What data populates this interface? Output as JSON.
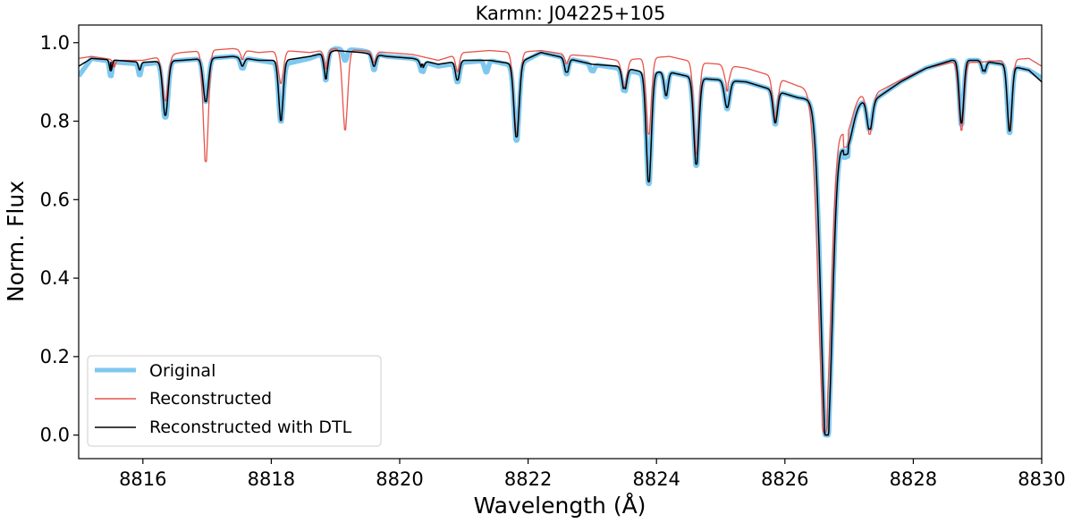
{
  "chart_data": {
    "type": "line",
    "title": "Karmn: J04225+105",
    "xlabel": "Wavelength (Å)",
    "ylabel": "Norm. Flux",
    "xlim": [
      8815,
      8830
    ],
    "ylim": [
      -0.06,
      1.045
    ],
    "xticks": [
      8816,
      8818,
      8820,
      8822,
      8824,
      8826,
      8828,
      8830
    ],
    "yticks": [
      0.0,
      0.2,
      0.4,
      0.6,
      0.8,
      1.0
    ],
    "grid": false,
    "legend_position": "lower-left",
    "series": [
      {
        "name": "Original",
        "color": "#7ec8f0",
        "baseline": [
          [
            8815.0,
            0.915
          ],
          [
            8815.2,
            0.96
          ],
          [
            8815.6,
            0.95
          ],
          [
            8816.0,
            0.945
          ],
          [
            8816.6,
            0.955
          ],
          [
            8817.0,
            0.96
          ],
          [
            8817.4,
            0.965
          ],
          [
            8817.8,
            0.955
          ],
          [
            8818.2,
            0.945
          ],
          [
            8818.6,
            0.96
          ],
          [
            8819.0,
            0.985
          ],
          [
            8819.4,
            0.98
          ],
          [
            8819.8,
            0.965
          ],
          [
            8820.2,
            0.96
          ],
          [
            8820.6,
            0.94
          ],
          [
            8821.0,
            0.95
          ],
          [
            8821.4,
            0.955
          ],
          [
            8821.8,
            0.94
          ],
          [
            8822.2,
            0.975
          ],
          [
            8822.6,
            0.96
          ],
          [
            8823.0,
            0.945
          ],
          [
            8823.4,
            0.935
          ],
          [
            8823.8,
            0.92
          ],
          [
            8824.2,
            0.925
          ],
          [
            8824.6,
            0.91
          ],
          [
            8825.0,
            0.905
          ],
          [
            8825.4,
            0.9
          ],
          [
            8825.8,
            0.88
          ],
          [
            8826.2,
            0.86
          ],
          [
            8826.6,
            0.85
          ],
          [
            8827.0,
            0.85
          ],
          [
            8827.4,
            0.855
          ],
          [
            8827.8,
            0.9
          ],
          [
            8828.2,
            0.935
          ],
          [
            8828.6,
            0.955
          ],
          [
            8829.0,
            0.955
          ],
          [
            8829.4,
            0.945
          ],
          [
            8829.8,
            0.93
          ],
          [
            8830.0,
            0.91
          ]
        ],
        "lines": [
          [
            8815.5,
            0.945,
            0.02,
            0.04
          ],
          [
            8815.95,
            0.92,
            0.02,
            0.03
          ],
          [
            8816.35,
            0.81,
            0.04,
            0.15
          ],
          [
            8816.98,
            0.85,
            0.04,
            0.11
          ],
          [
            8817.55,
            0.935,
            0.03,
            0.03
          ],
          [
            8818.15,
            0.8,
            0.035,
            0.15
          ],
          [
            8818.85,
            0.9,
            0.03,
            0.06
          ],
          [
            8819.15,
            0.955,
            0.03,
            0.03
          ],
          [
            8819.6,
            0.93,
            0.03,
            0.04
          ],
          [
            8820.35,
            0.94,
            0.03,
            0.03
          ],
          [
            8820.9,
            0.9,
            0.03,
            0.05
          ],
          [
            8821.35,
            0.925,
            0.03,
            0.03
          ],
          [
            8821.82,
            0.75,
            0.04,
            0.19
          ],
          [
            8822.6,
            0.92,
            0.03,
            0.04
          ],
          [
            8823.0,
            0.93,
            0.03,
            0.02
          ],
          [
            8823.5,
            0.88,
            0.035,
            0.06
          ],
          [
            8823.88,
            0.64,
            0.04,
            0.28
          ],
          [
            8824.15,
            0.86,
            0.03,
            0.06
          ],
          [
            8824.62,
            0.685,
            0.04,
            0.22
          ],
          [
            8825.1,
            0.83,
            0.04,
            0.07
          ],
          [
            8825.85,
            0.79,
            0.035,
            0.08
          ],
          [
            8826.65,
            0.0,
            0.09,
            0.88
          ],
          [
            8826.95,
            0.7,
            0.1,
            0.12
          ],
          [
            8827.32,
            0.78,
            0.04,
            0.08
          ],
          [
            8828.75,
            0.79,
            0.035,
            0.16
          ],
          [
            8829.1,
            0.925,
            0.03,
            0.03
          ],
          [
            8829.5,
            0.77,
            0.035,
            0.17
          ]
        ]
      },
      {
        "name": "Reconstructed",
        "color": "#e8534a",
        "baseline": [
          [
            8815.0,
            0.96
          ],
          [
            8815.2,
            0.965
          ],
          [
            8815.6,
            0.955
          ],
          [
            8816.0,
            0.955
          ],
          [
            8816.6,
            0.975
          ],
          [
            8817.0,
            0.98
          ],
          [
            8817.4,
            0.985
          ],
          [
            8817.8,
            0.975
          ],
          [
            8818.2,
            0.98
          ],
          [
            8818.6,
            0.975
          ],
          [
            8819.0,
            0.985
          ],
          [
            8819.4,
            0.98
          ],
          [
            8819.8,
            0.975
          ],
          [
            8820.2,
            0.97
          ],
          [
            8820.6,
            0.955
          ],
          [
            8821.0,
            0.975
          ],
          [
            8821.4,
            0.98
          ],
          [
            8821.8,
            0.975
          ],
          [
            8822.2,
            0.98
          ],
          [
            8822.6,
            0.97
          ],
          [
            8823.0,
            0.965
          ],
          [
            8823.4,
            0.955
          ],
          [
            8823.8,
            0.96
          ],
          [
            8824.2,
            0.965
          ],
          [
            8824.6,
            0.95
          ],
          [
            8825.0,
            0.945
          ],
          [
            8825.4,
            0.935
          ],
          [
            8825.8,
            0.915
          ],
          [
            8826.2,
            0.89
          ],
          [
            8826.6,
            0.875
          ],
          [
            8827.0,
            0.87
          ],
          [
            8827.4,
            0.87
          ],
          [
            8827.8,
            0.905
          ],
          [
            8828.2,
            0.935
          ],
          [
            8828.6,
            0.95
          ],
          [
            8829.0,
            0.95
          ],
          [
            8829.4,
            0.955
          ],
          [
            8829.8,
            0.96
          ],
          [
            8830.0,
            0.94
          ]
        ],
        "lines": [
          [
            8815.55,
            0.955,
            0.02,
            0.02
          ],
          [
            8816.35,
            0.85,
            0.045,
            0.11
          ],
          [
            8816.98,
            0.695,
            0.04,
            0.28
          ],
          [
            8817.55,
            0.955,
            0.03,
            0.02
          ],
          [
            8818.15,
            0.895,
            0.04,
            0.08
          ],
          [
            8818.85,
            0.93,
            0.03,
            0.04
          ],
          [
            8819.15,
            0.775,
            0.04,
            0.2
          ],
          [
            8819.6,
            0.95,
            0.03,
            0.03
          ],
          [
            8820.9,
            0.925,
            0.03,
            0.04
          ],
          [
            8821.82,
            0.765,
            0.045,
            0.2
          ],
          [
            8822.6,
            0.945,
            0.03,
            0.02
          ],
          [
            8823.5,
            0.89,
            0.04,
            0.07
          ],
          [
            8823.88,
            0.765,
            0.04,
            0.19
          ],
          [
            8824.62,
            0.715,
            0.04,
            0.23
          ],
          [
            8825.1,
            0.87,
            0.04,
            0.05
          ],
          [
            8825.85,
            0.795,
            0.04,
            0.1
          ],
          [
            8826.62,
            0.0,
            0.1,
            0.86
          ],
          [
            8826.95,
            0.72,
            0.1,
            0.1
          ],
          [
            8827.32,
            0.765,
            0.045,
            0.1
          ],
          [
            8828.75,
            0.775,
            0.04,
            0.17
          ],
          [
            8829.5,
            0.78,
            0.04,
            0.17
          ]
        ]
      },
      {
        "name": "Reconstructed with DTL",
        "color": "#000000",
        "baseline": [
          [
            8815.0,
            0.94
          ],
          [
            8815.2,
            0.96
          ],
          [
            8815.6,
            0.955
          ],
          [
            8816.0,
            0.95
          ],
          [
            8816.6,
            0.955
          ],
          [
            8817.0,
            0.96
          ],
          [
            8817.4,
            0.965
          ],
          [
            8817.8,
            0.955
          ],
          [
            8818.2,
            0.955
          ],
          [
            8818.6,
            0.965
          ],
          [
            8819.0,
            0.98
          ],
          [
            8819.4,
            0.975
          ],
          [
            8819.8,
            0.965
          ],
          [
            8820.2,
            0.96
          ],
          [
            8820.6,
            0.945
          ],
          [
            8821.0,
            0.955
          ],
          [
            8821.4,
            0.955
          ],
          [
            8821.8,
            0.945
          ],
          [
            8822.2,
            0.975
          ],
          [
            8822.6,
            0.96
          ],
          [
            8823.0,
            0.945
          ],
          [
            8823.4,
            0.94
          ],
          [
            8823.8,
            0.925
          ],
          [
            8824.2,
            0.925
          ],
          [
            8824.6,
            0.91
          ],
          [
            8825.0,
            0.905
          ],
          [
            8825.4,
            0.9
          ],
          [
            8825.8,
            0.88
          ],
          [
            8826.2,
            0.86
          ],
          [
            8826.6,
            0.85
          ],
          [
            8827.0,
            0.85
          ],
          [
            8827.4,
            0.855
          ],
          [
            8827.8,
            0.9
          ],
          [
            8828.2,
            0.935
          ],
          [
            8828.6,
            0.955
          ],
          [
            8829.0,
            0.955
          ],
          [
            8829.4,
            0.945
          ],
          [
            8829.8,
            0.93
          ],
          [
            8830.0,
            0.9
          ]
        ],
        "lines": [
          [
            8815.5,
            0.95,
            0.02,
            0.03
          ],
          [
            8815.95,
            0.93,
            0.02,
            0.02
          ],
          [
            8816.35,
            0.815,
            0.04,
            0.14
          ],
          [
            8816.98,
            0.85,
            0.04,
            0.11
          ],
          [
            8817.55,
            0.94,
            0.03,
            0.02
          ],
          [
            8818.15,
            0.8,
            0.035,
            0.15
          ],
          [
            8818.85,
            0.905,
            0.03,
            0.06
          ],
          [
            8819.6,
            0.94,
            0.03,
            0.03
          ],
          [
            8820.35,
            0.945,
            0.03,
            0.02
          ],
          [
            8820.9,
            0.905,
            0.03,
            0.05
          ],
          [
            8821.82,
            0.76,
            0.04,
            0.19
          ],
          [
            8822.6,
            0.925,
            0.03,
            0.04
          ],
          [
            8823.5,
            0.885,
            0.035,
            0.06
          ],
          [
            8823.88,
            0.645,
            0.04,
            0.28
          ],
          [
            8824.15,
            0.865,
            0.03,
            0.06
          ],
          [
            8824.62,
            0.69,
            0.04,
            0.22
          ],
          [
            8825.1,
            0.835,
            0.04,
            0.07
          ],
          [
            8825.85,
            0.795,
            0.035,
            0.08
          ],
          [
            8826.65,
            0.0,
            0.09,
            0.88
          ],
          [
            8826.95,
            0.71,
            0.1,
            0.12
          ],
          [
            8827.32,
            0.78,
            0.04,
            0.08
          ],
          [
            8828.75,
            0.795,
            0.035,
            0.16
          ],
          [
            8829.1,
            0.93,
            0.03,
            0.03
          ],
          [
            8829.5,
            0.775,
            0.035,
            0.17
          ]
        ]
      }
    ]
  }
}
